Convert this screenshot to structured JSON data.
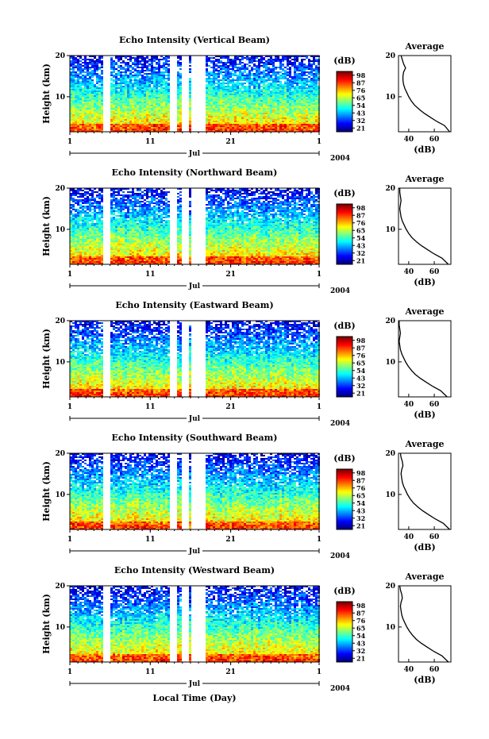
{
  "figure": {
    "xlabel": "Local Time (Day)",
    "month_label": "Jul",
    "year_label": "2004"
  },
  "chart_data": [
    {
      "type": "heatmap",
      "title": "Echo Intensity (Vertical Beam)",
      "ylabel": "Height (km)",
      "x_ticks": [
        "1",
        "11",
        "21",
        "1"
      ],
      "y_ticks": [
        "10",
        "20"
      ],
      "ylim": [
        1.5,
        20
      ],
      "colorbar_label": "(dB)",
      "colorbar_ticks": [
        "98",
        "87",
        "76",
        "65",
        "54",
        "43",
        "32",
        "21"
      ],
      "gap_days": [
        5.5,
        14.0,
        15.5,
        16.5,
        17.5
      ],
      "avg_profile": {
        "title": "Average",
        "xlabel": "(dB)",
        "x_ticks": [
          "40",
          "60"
        ],
        "y_ticks": [
          "10",
          "20"
        ],
        "height_km": [
          1.5,
          3,
          4,
          5,
          6,
          7,
          8,
          9,
          10,
          11,
          12,
          13,
          14,
          15,
          16,
          17,
          18,
          19,
          20
        ],
        "avg_db": [
          72,
          68,
          62,
          57,
          52,
          48,
          44.5,
          42,
          40,
          38.5,
          37,
          36,
          35.5,
          35.5,
          36,
          37.5,
          36,
          35,
          34
        ]
      }
    },
    {
      "type": "heatmap",
      "title": "Echo Intensity (Northward Beam)",
      "ylabel": "Height (km)",
      "x_ticks": [
        "1",
        "11",
        "21",
        "1"
      ],
      "y_ticks": [
        "10",
        "20"
      ],
      "ylim": [
        1.5,
        20
      ],
      "colorbar_label": "(dB)",
      "colorbar_ticks": [
        "98",
        "87",
        "76",
        "65",
        "54",
        "43",
        "32",
        "21"
      ],
      "gap_days": [
        5.5,
        14.0,
        15.5,
        16.5,
        17.5
      ],
      "avg_profile": {
        "title": "Average",
        "xlabel": "(dB)",
        "x_ticks": [
          "40",
          "60"
        ],
        "y_ticks": [
          "10",
          "20"
        ],
        "height_km": [
          1.5,
          3,
          4,
          5,
          6,
          7,
          8,
          9,
          10,
          11,
          12,
          13,
          14,
          15,
          16,
          17,
          18,
          19,
          20
        ],
        "avg_db": [
          71,
          66,
          60,
          55,
          50,
          46,
          42.5,
          40,
          38,
          36.5,
          35,
          34,
          33.5,
          33,
          33.5,
          34,
          33.5,
          33,
          33
        ]
      }
    },
    {
      "type": "heatmap",
      "title": "Echo Intensity (Eastward Beam)",
      "ylabel": "Height (km)",
      "x_ticks": [
        "1",
        "11",
        "21",
        "1"
      ],
      "y_ticks": [
        "10",
        "20"
      ],
      "ylim": [
        1.5,
        20
      ],
      "colorbar_label": "(dB)",
      "colorbar_ticks": [
        "98",
        "87",
        "76",
        "65",
        "54",
        "43",
        "32",
        "21"
      ],
      "gap_days": [
        5.5,
        14.0,
        15.5,
        16.5,
        17.5
      ],
      "avg_profile": {
        "title": "Average",
        "xlabel": "(dB)",
        "x_ticks": [
          "40",
          "60"
        ],
        "y_ticks": [
          "10",
          "20"
        ],
        "height_km": [
          1.5,
          3,
          4,
          5,
          6,
          7,
          8,
          9,
          10,
          11,
          12,
          13,
          14,
          15,
          16,
          17,
          18,
          19,
          20
        ],
        "avg_db": [
          70,
          65,
          59,
          54,
          49,
          45,
          42,
          39.5,
          37.5,
          36,
          34.5,
          33.5,
          33,
          32.5,
          33,
          33.5,
          33,
          32.5,
          32.5
        ]
      }
    },
    {
      "type": "heatmap",
      "title": "Echo Intensity (Southward Beam)",
      "ylabel": "Height (km)",
      "x_ticks": [
        "1",
        "11",
        "21",
        "1"
      ],
      "y_ticks": [
        "10",
        "20"
      ],
      "ylim": [
        1.5,
        20
      ],
      "colorbar_label": "(dB)",
      "colorbar_ticks": [
        "98",
        "87",
        "76",
        "65",
        "54",
        "43",
        "32",
        "21"
      ],
      "gap_days": [
        5.5,
        14.0,
        15.5,
        16.5,
        17.5
      ],
      "avg_profile": {
        "title": "Average",
        "xlabel": "(dB)",
        "x_ticks": [
          "40",
          "60"
        ],
        "y_ticks": [
          "10",
          "20"
        ],
        "height_km": [
          1.5,
          3,
          4,
          5,
          6,
          7,
          8,
          9,
          10,
          11,
          12,
          13,
          14,
          15,
          16,
          17,
          18,
          19,
          20
        ],
        "avg_db": [
          72,
          67,
          61,
          56,
          51,
          47,
          43.5,
          41,
          39,
          37.5,
          36,
          35,
          34.5,
          34,
          34.5,
          35.5,
          35,
          34,
          33.5
        ]
      }
    },
    {
      "type": "heatmap",
      "title": "Echo Intensity (Westward Beam)",
      "ylabel": "Height (km)",
      "x_ticks": [
        "1",
        "11",
        "21",
        "1"
      ],
      "y_ticks": [
        "10",
        "20"
      ],
      "ylim": [
        1.5,
        20
      ],
      "colorbar_label": "(dB)",
      "colorbar_ticks": [
        "98",
        "87",
        "76",
        "65",
        "54",
        "43",
        "32",
        "21"
      ],
      "gap_days": [
        5.5,
        14.0,
        15.5,
        16.5,
        17.5
      ],
      "avg_profile": {
        "title": "Average",
        "xlabel": "(dB)",
        "x_ticks": [
          "40",
          "60"
        ],
        "y_ticks": [
          "10",
          "20"
        ],
        "height_km": [
          1.5,
          3,
          4,
          5,
          6,
          7,
          8,
          9,
          10,
          11,
          12,
          13,
          14,
          15,
          16,
          17,
          18,
          19,
          20
        ],
        "avg_db": [
          71,
          66,
          60,
          55,
          50,
          46,
          43,
          40.5,
          38.5,
          37,
          35.5,
          34.5,
          34,
          33.5,
          34,
          35,
          34.5,
          33.5,
          33
        ]
      }
    }
  ]
}
